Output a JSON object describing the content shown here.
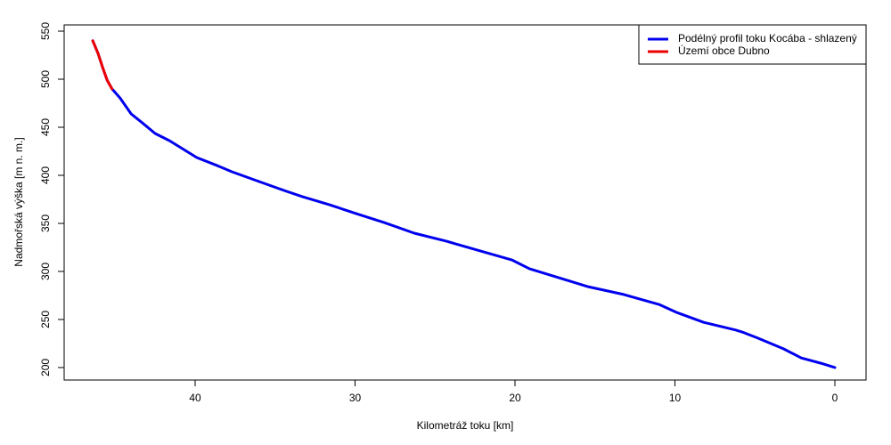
{
  "chart_data": {
    "type": "line",
    "x_label": "Kilometráž toku [km]",
    "y_label": "Nadmořská výška [m n. m.]",
    "xlim": [
      48.19,
      -1.95
    ],
    "xticks": [
      40,
      30,
      20,
      10,
      0
    ],
    "ylim": [
      187,
      556.5
    ],
    "yticks": [
      200,
      250,
      300,
      350,
      400,
      450,
      500,
      550
    ],
    "legend_position": "top-right",
    "series": [
      {
        "name": "Podélný profil toku Kocába - shlazený",
        "color": "#0000ee",
        "x": [
          46.4,
          46.07,
          45.8,
          45.5,
          45.2,
          44.7,
          44.0,
          43.3,
          42.5,
          41.6,
          40.8,
          39.9,
          38.6,
          37.7,
          36.0,
          34.4,
          33.3,
          31.6,
          29.9,
          28.2,
          26.3,
          24.3,
          22.1,
          20.2,
          19.1,
          17.1,
          15.4,
          13.2,
          11.0,
          9.9,
          8.2,
          6.2,
          5.8,
          4.8,
          3.2,
          2.1,
          0.9,
          0
        ],
        "values": [
          540,
          526.8,
          513,
          499,
          490,
          480.6,
          463.9,
          454.6,
          443.5,
          436,
          427.8,
          418.5,
          410,
          403.7,
          393.5,
          384,
          377.8,
          369.4,
          360,
          351,
          339.8,
          331.5,
          321,
          312,
          302.8,
          292.6,
          284,
          276,
          265.7,
          257.4,
          247,
          239,
          237,
          230.5,
          219.4,
          210,
          204.6,
          200
        ]
      },
      {
        "name": "Území obce Dubno",
        "color": "#ee0000",
        "x": [
          46.4,
          46.07,
          45.8,
          45.5,
          45.2
        ],
        "values": [
          540,
          526.8,
          513,
          499,
          490
        ]
      }
    ]
  }
}
